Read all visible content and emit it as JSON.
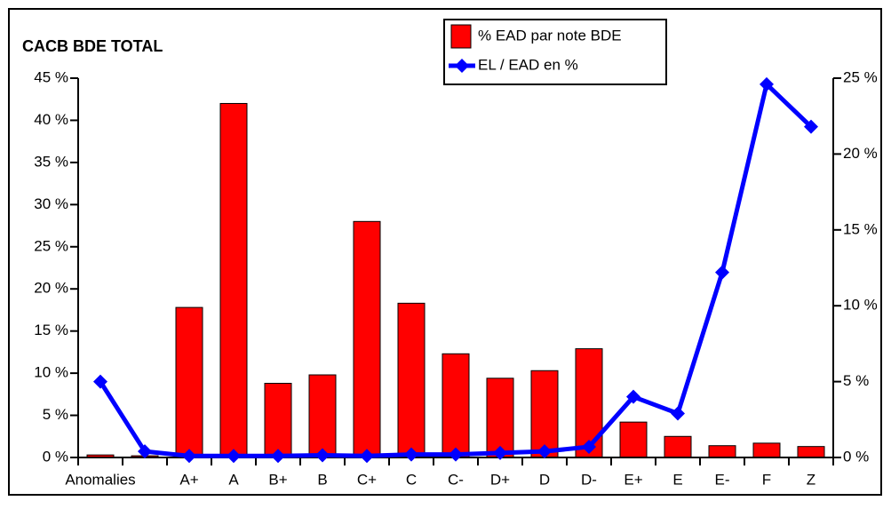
{
  "chart_data": {
    "type": "bar_line",
    "title": "CACB BDE TOTAL",
    "categories": [
      "Anomalies",
      null,
      "A+",
      "A",
      "B+",
      "B",
      "C+",
      "C",
      "C-",
      "D+",
      "D",
      "D-",
      "E+",
      "E",
      "E-",
      "F",
      "Z"
    ],
    "series": [
      {
        "name": "% EAD par note BDE",
        "color": "#ff0000",
        "type": "bar",
        "axis": "y",
        "values": [
          0.3,
          0.2,
          17.8,
          42,
          8.8,
          9.8,
          28,
          18.3,
          12.3,
          9.4,
          10.3,
          12.9,
          4.2,
          2.5,
          1.4,
          1.7,
          1.3
        ]
      },
      {
        "name": "EL / EAD en %",
        "color": "#0000ff",
        "type": "line",
        "axis": "y2",
        "values": [
          5.0,
          0.4,
          0.1,
          0.1,
          0.1,
          0.15,
          0.1,
          0.2,
          0.2,
          0.3,
          0.4,
          0.7,
          4.0,
          2.9,
          12.2,
          24.6,
          21.8
        ]
      }
    ],
    "ylim": [
      0,
      45
    ],
    "yticks": [
      {
        "value": 0,
        "label": "0 %"
      },
      {
        "value": 5,
        "label": "5 %"
      },
      {
        "value": 10,
        "label": "10 %"
      },
      {
        "value": 15,
        "label": "15 %"
      },
      {
        "value": 20,
        "label": "20 %"
      },
      {
        "value": 25,
        "label": "25 %"
      },
      {
        "value": 30,
        "label": "30 %"
      },
      {
        "value": 35,
        "label": "35 %"
      },
      {
        "value": 40,
        "label": "40 %"
      },
      {
        "value": 45,
        "label": "45 %"
      }
    ],
    "y2lim": [
      0,
      25
    ],
    "y2ticks": [
      {
        "value": 0,
        "label": "0 %"
      },
      {
        "value": 5,
        "label": "5 %"
      },
      {
        "value": 10,
        "label": "10 %"
      },
      {
        "value": 15,
        "label": "15 %"
      },
      {
        "value": 20,
        "label": "20 %"
      },
      {
        "value": 25,
        "label": "25 %"
      }
    ],
    "legend": "top-right"
  }
}
